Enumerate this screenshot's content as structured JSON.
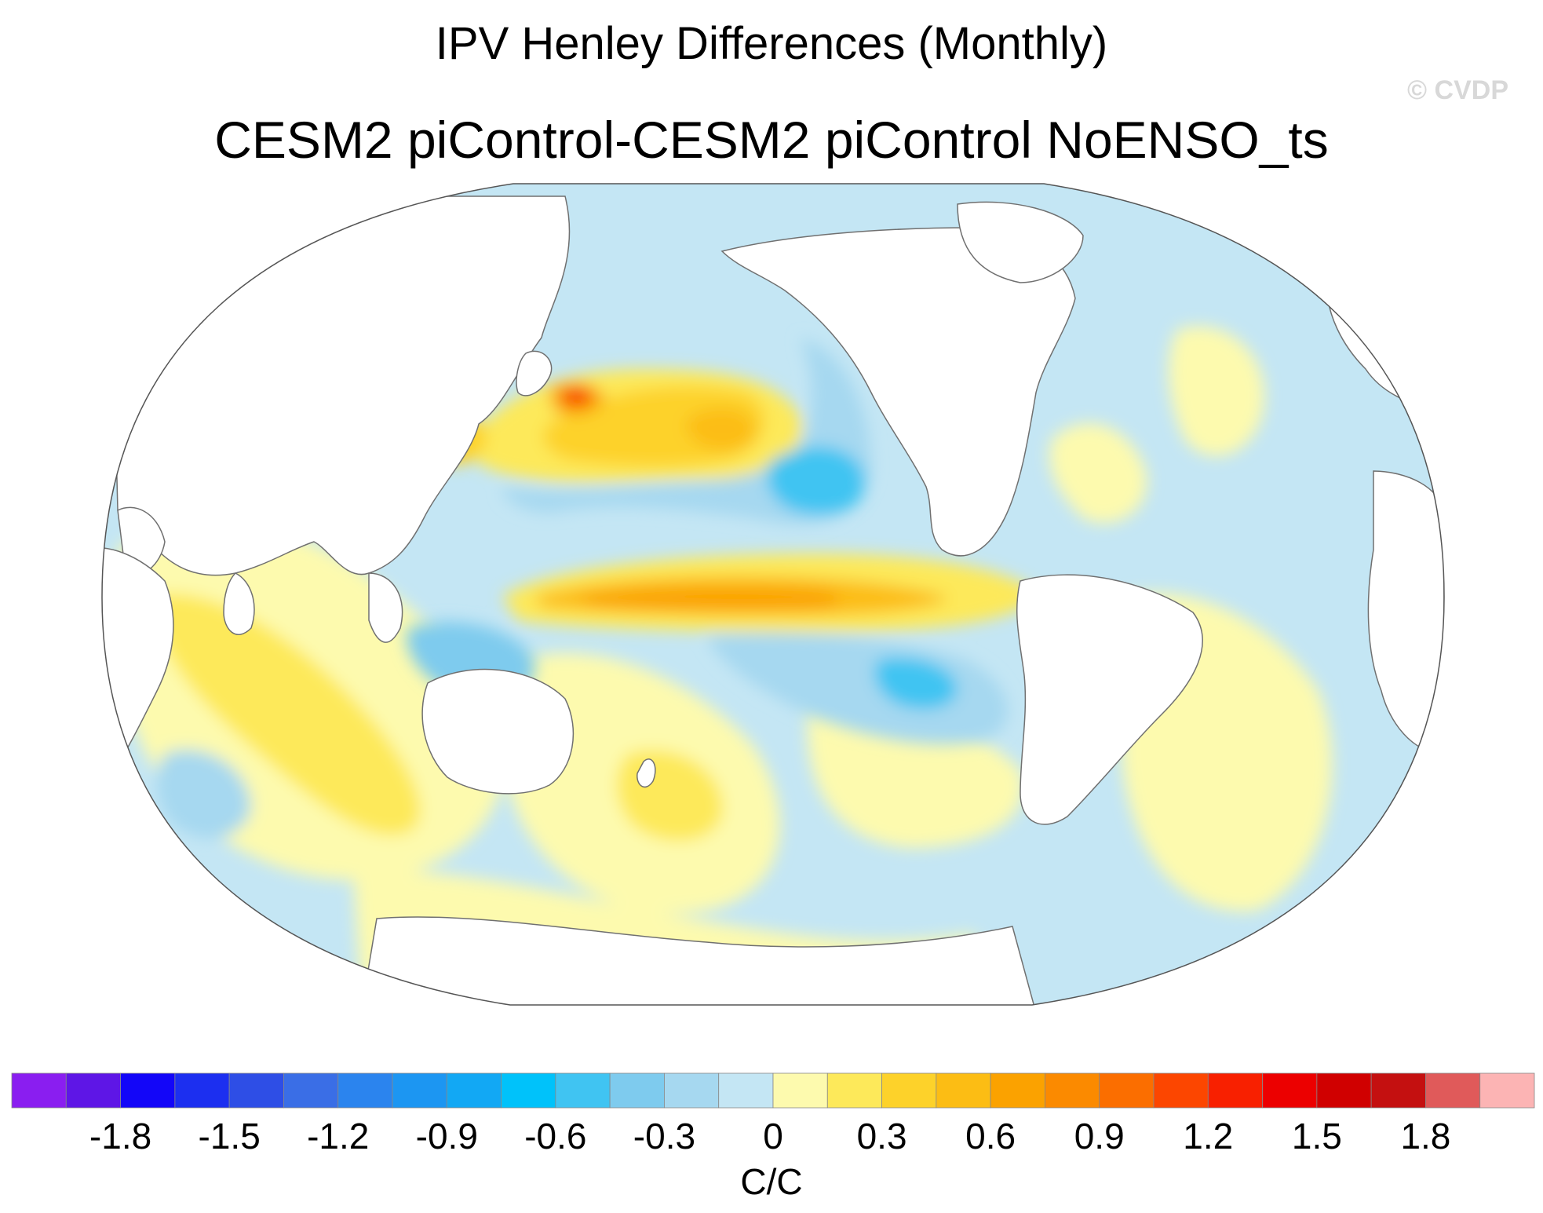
{
  "title": "IPV Henley Differences (Monthly)",
  "subtitle": "CESM2 piControl-CESM2 piControl NoENSO_ts",
  "credit": "© CVDP",
  "colorbar": {
    "units": "C/C",
    "colors": [
      "#8a1ef0",
      "#5e16e6",
      "#1306f8",
      "#1c2ff0",
      "#2e4ee6",
      "#3a6ee6",
      "#2b84ee",
      "#1c96f2",
      "#12a8f4",
      "#00c2fa",
      "#40c4f2",
      "#7ecbee",
      "#a6d8f0",
      "#c4e6f4",
      "#fdfaae",
      "#fde95a",
      "#fdd22a",
      "#fcbd14",
      "#fba200",
      "#fb8a00",
      "#fb6e00",
      "#fc4600",
      "#f82000",
      "#ec0000",
      "#d00000",
      "#c41010",
      "#e05a5a",
      "#fcb4b4"
    ],
    "tick_labels": [
      "-1.8",
      "-1.5",
      "-1.2",
      "-0.9",
      "-0.6",
      "-0.3",
      "0",
      "0.3",
      "0.6",
      "0.9",
      "1.2",
      "1.5",
      "1.8"
    ]
  },
  "map_data": {
    "projection": "Robinson (Pacific-centered)",
    "field": "IPV regression of SST",
    "features": [
      {
        "name": "north-pacific-warm-lobe",
        "value": 0.6
      },
      {
        "name": "kuroshio-extension-max",
        "value": 1.5
      },
      {
        "name": "northeast-pacific-cool",
        "value": -0.6
      },
      {
        "name": "equatorial-pacific-warm-tongue",
        "value": 0.9
      },
      {
        "name": "southeast-pacific-cool",
        "value": -0.6
      },
      {
        "name": "southwest-pacific-warm",
        "value": 0.3
      },
      {
        "name": "indian-ocean-warm",
        "value": 0.3
      },
      {
        "name": "southern-ocean-cool-band",
        "value": -0.3
      }
    ]
  }
}
